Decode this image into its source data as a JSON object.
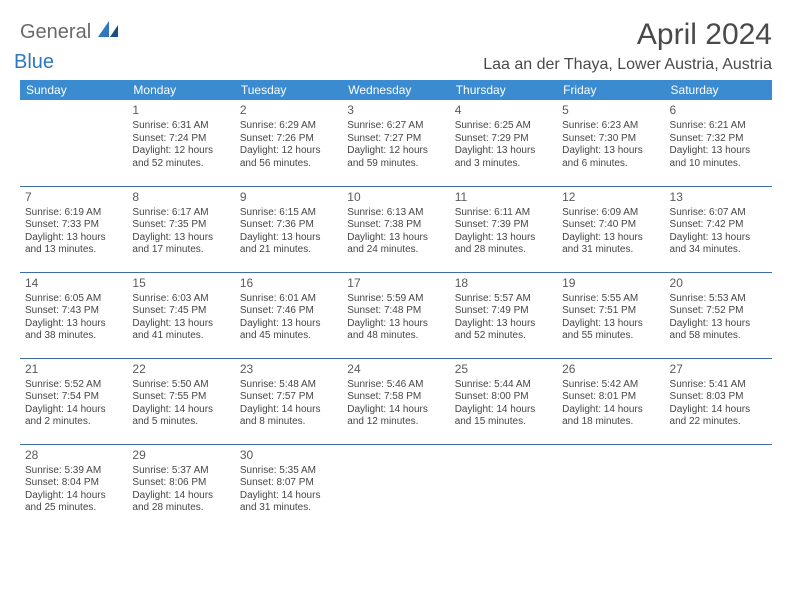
{
  "logo": {
    "text1": "General",
    "text2": "Blue"
  },
  "title": "April 2024",
  "location": "Laa an der Thaya, Lower Austria, Austria",
  "colors": {
    "header_bg": "#3a8bd0",
    "header_text": "#ffffff",
    "row_divider": "#3a6ea5",
    "body_text": "#464646",
    "title_text": "#4a4a4a",
    "logo_gray": "#6a6a6a",
    "logo_blue": "#2f78c0",
    "page_bg": "#ffffff"
  },
  "weekdays": [
    "Sunday",
    "Monday",
    "Tuesday",
    "Wednesday",
    "Thursday",
    "Friday",
    "Saturday"
  ],
  "weeks": [
    [
      null,
      {
        "n": "1",
        "sr": "Sunrise: 6:31 AM",
        "ss": "Sunset: 7:24 PM",
        "dl": "Daylight: 12 hours and 52 minutes."
      },
      {
        "n": "2",
        "sr": "Sunrise: 6:29 AM",
        "ss": "Sunset: 7:26 PM",
        "dl": "Daylight: 12 hours and 56 minutes."
      },
      {
        "n": "3",
        "sr": "Sunrise: 6:27 AM",
        "ss": "Sunset: 7:27 PM",
        "dl": "Daylight: 12 hours and 59 minutes."
      },
      {
        "n": "4",
        "sr": "Sunrise: 6:25 AM",
        "ss": "Sunset: 7:29 PM",
        "dl": "Daylight: 13 hours and 3 minutes."
      },
      {
        "n": "5",
        "sr": "Sunrise: 6:23 AM",
        "ss": "Sunset: 7:30 PM",
        "dl": "Daylight: 13 hours and 6 minutes."
      },
      {
        "n": "6",
        "sr": "Sunrise: 6:21 AM",
        "ss": "Sunset: 7:32 PM",
        "dl": "Daylight: 13 hours and 10 minutes."
      }
    ],
    [
      {
        "n": "7",
        "sr": "Sunrise: 6:19 AM",
        "ss": "Sunset: 7:33 PM",
        "dl": "Daylight: 13 hours and 13 minutes."
      },
      {
        "n": "8",
        "sr": "Sunrise: 6:17 AM",
        "ss": "Sunset: 7:35 PM",
        "dl": "Daylight: 13 hours and 17 minutes."
      },
      {
        "n": "9",
        "sr": "Sunrise: 6:15 AM",
        "ss": "Sunset: 7:36 PM",
        "dl": "Daylight: 13 hours and 21 minutes."
      },
      {
        "n": "10",
        "sr": "Sunrise: 6:13 AM",
        "ss": "Sunset: 7:38 PM",
        "dl": "Daylight: 13 hours and 24 minutes."
      },
      {
        "n": "11",
        "sr": "Sunrise: 6:11 AM",
        "ss": "Sunset: 7:39 PM",
        "dl": "Daylight: 13 hours and 28 minutes."
      },
      {
        "n": "12",
        "sr": "Sunrise: 6:09 AM",
        "ss": "Sunset: 7:40 PM",
        "dl": "Daylight: 13 hours and 31 minutes."
      },
      {
        "n": "13",
        "sr": "Sunrise: 6:07 AM",
        "ss": "Sunset: 7:42 PM",
        "dl": "Daylight: 13 hours and 34 minutes."
      }
    ],
    [
      {
        "n": "14",
        "sr": "Sunrise: 6:05 AM",
        "ss": "Sunset: 7:43 PM",
        "dl": "Daylight: 13 hours and 38 minutes."
      },
      {
        "n": "15",
        "sr": "Sunrise: 6:03 AM",
        "ss": "Sunset: 7:45 PM",
        "dl": "Daylight: 13 hours and 41 minutes."
      },
      {
        "n": "16",
        "sr": "Sunrise: 6:01 AM",
        "ss": "Sunset: 7:46 PM",
        "dl": "Daylight: 13 hours and 45 minutes."
      },
      {
        "n": "17",
        "sr": "Sunrise: 5:59 AM",
        "ss": "Sunset: 7:48 PM",
        "dl": "Daylight: 13 hours and 48 minutes."
      },
      {
        "n": "18",
        "sr": "Sunrise: 5:57 AM",
        "ss": "Sunset: 7:49 PM",
        "dl": "Daylight: 13 hours and 52 minutes."
      },
      {
        "n": "19",
        "sr": "Sunrise: 5:55 AM",
        "ss": "Sunset: 7:51 PM",
        "dl": "Daylight: 13 hours and 55 minutes."
      },
      {
        "n": "20",
        "sr": "Sunrise: 5:53 AM",
        "ss": "Sunset: 7:52 PM",
        "dl": "Daylight: 13 hours and 58 minutes."
      }
    ],
    [
      {
        "n": "21",
        "sr": "Sunrise: 5:52 AM",
        "ss": "Sunset: 7:54 PM",
        "dl": "Daylight: 14 hours and 2 minutes."
      },
      {
        "n": "22",
        "sr": "Sunrise: 5:50 AM",
        "ss": "Sunset: 7:55 PM",
        "dl": "Daylight: 14 hours and 5 minutes."
      },
      {
        "n": "23",
        "sr": "Sunrise: 5:48 AM",
        "ss": "Sunset: 7:57 PM",
        "dl": "Daylight: 14 hours and 8 minutes."
      },
      {
        "n": "24",
        "sr": "Sunrise: 5:46 AM",
        "ss": "Sunset: 7:58 PM",
        "dl": "Daylight: 14 hours and 12 minutes."
      },
      {
        "n": "25",
        "sr": "Sunrise: 5:44 AM",
        "ss": "Sunset: 8:00 PM",
        "dl": "Daylight: 14 hours and 15 minutes."
      },
      {
        "n": "26",
        "sr": "Sunrise: 5:42 AM",
        "ss": "Sunset: 8:01 PM",
        "dl": "Daylight: 14 hours and 18 minutes."
      },
      {
        "n": "27",
        "sr": "Sunrise: 5:41 AM",
        "ss": "Sunset: 8:03 PM",
        "dl": "Daylight: 14 hours and 22 minutes."
      }
    ],
    [
      {
        "n": "28",
        "sr": "Sunrise: 5:39 AM",
        "ss": "Sunset: 8:04 PM",
        "dl": "Daylight: 14 hours and 25 minutes."
      },
      {
        "n": "29",
        "sr": "Sunrise: 5:37 AM",
        "ss": "Sunset: 8:06 PM",
        "dl": "Daylight: 14 hours and 28 minutes."
      },
      {
        "n": "30",
        "sr": "Sunrise: 5:35 AM",
        "ss": "Sunset: 8:07 PM",
        "dl": "Daylight: 14 hours and 31 minutes."
      },
      null,
      null,
      null,
      null
    ]
  ]
}
